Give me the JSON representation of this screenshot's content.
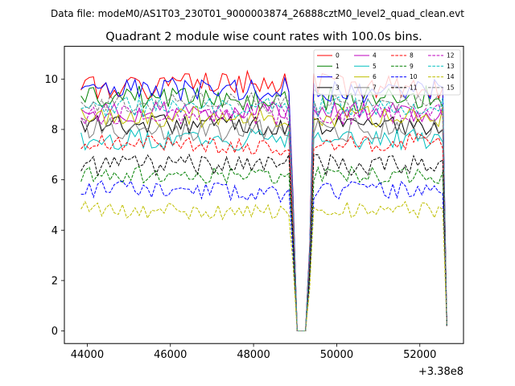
{
  "chart_data": {
    "type": "line",
    "suptitle": "Data file: modeM0/AS1T03_230T01_9000003874_26888cztM0_level2_quad_clean.evt",
    "title": "Quadrant 2 module wise count rates with 100.0s bins.",
    "xlabel": "",
    "ylabel": "",
    "x_offset_label": "+3.38e8",
    "xlim": [
      43450,
      53050
    ],
    "ylim": [
      -0.5,
      11.3
    ],
    "x_ticks": [
      44000,
      46000,
      48000,
      50000,
      52000
    ],
    "x_tick_labels": [
      "44000",
      "46000",
      "48000",
      "50000",
      "52000"
    ],
    "y_ticks": [
      0,
      2,
      4,
      6,
      8,
      10
    ],
    "y_tick_labels": [
      "0",
      "2",
      "4",
      "6",
      "8",
      "10"
    ],
    "legend_position": "top-right",
    "x_start": 43850,
    "x_step": 100,
    "segments": [
      [
        43850,
        48950
      ],
      [
        49350,
        52650
      ]
    ],
    "gaps": [
      49050,
      49150,
      49250
    ],
    "series": [
      {
        "name": "0",
        "color": "#ff0000",
        "dash": "solid",
        "base": 9.75,
        "amp": 0.35,
        "trend": 0.3,
        "seed": 1
      },
      {
        "name": "1",
        "color": "#008000",
        "dash": "solid",
        "base": 9.2,
        "amp": 0.35,
        "trend": -0.2,
        "seed": 2
      },
      {
        "name": "2",
        "color": "#0000ff",
        "dash": "solid",
        "base": 9.55,
        "amp": 0.35,
        "trend": 0.1,
        "seed": 3
      },
      {
        "name": "3",
        "color": "#000000",
        "dash": "solid",
        "base": 8.2,
        "amp": 0.3,
        "trend": 0.0,
        "seed": 4
      },
      {
        "name": "4",
        "color": "#bf00bf",
        "dash": "solid",
        "base": 8.7,
        "amp": 0.3,
        "trend": 0.2,
        "seed": 5
      },
      {
        "name": "5",
        "color": "#00bfbf",
        "dash": "solid",
        "base": 7.6,
        "amp": 0.3,
        "trend": 0.0,
        "seed": 6
      },
      {
        "name": "6",
        "color": "#bfbf00",
        "dash": "solid",
        "base": 8.5,
        "amp": 0.3,
        "trend": 0.0,
        "seed": 7
      },
      {
        "name": "7",
        "color": "#808080",
        "dash": "solid",
        "base": 8.0,
        "amp": 0.35,
        "trend": 0.0,
        "seed": 8
      },
      {
        "name": "8",
        "color": "#ff0000",
        "dash": "dashed",
        "base": 7.4,
        "amp": 0.25,
        "trend": -0.3,
        "seed": 9
      },
      {
        "name": "9",
        "color": "#008000",
        "dash": "dashed",
        "base": 6.2,
        "amp": 0.25,
        "trend": 0.0,
        "seed": 10
      },
      {
        "name": "10",
        "color": "#0000ff",
        "dash": "dashed",
        "base": 5.55,
        "amp": 0.25,
        "trend": -0.2,
        "seed": 11
      },
      {
        "name": "11",
        "color": "#000000",
        "dash": "dashed",
        "base": 6.6,
        "amp": 0.3,
        "trend": 0.1,
        "seed": 12
      },
      {
        "name": "12",
        "color": "#bf00bf",
        "dash": "dashed",
        "base": 8.6,
        "amp": 0.3,
        "trend": 0.0,
        "seed": 13
      },
      {
        "name": "13",
        "color": "#00bfbf",
        "dash": "dashed",
        "base": 8.9,
        "amp": 0.3,
        "trend": 0.0,
        "seed": 14
      },
      {
        "name": "14",
        "color": "#bfbf00",
        "dash": "dashed",
        "base": 4.75,
        "amp": 0.25,
        "trend": -0.2,
        "seed": 15
      },
      {
        "name": "15",
        "color": "#808080",
        "dash": "dashed",
        "base": 9.05,
        "amp": 0.3,
        "trend": 0.0,
        "seed": 16
      }
    ]
  }
}
